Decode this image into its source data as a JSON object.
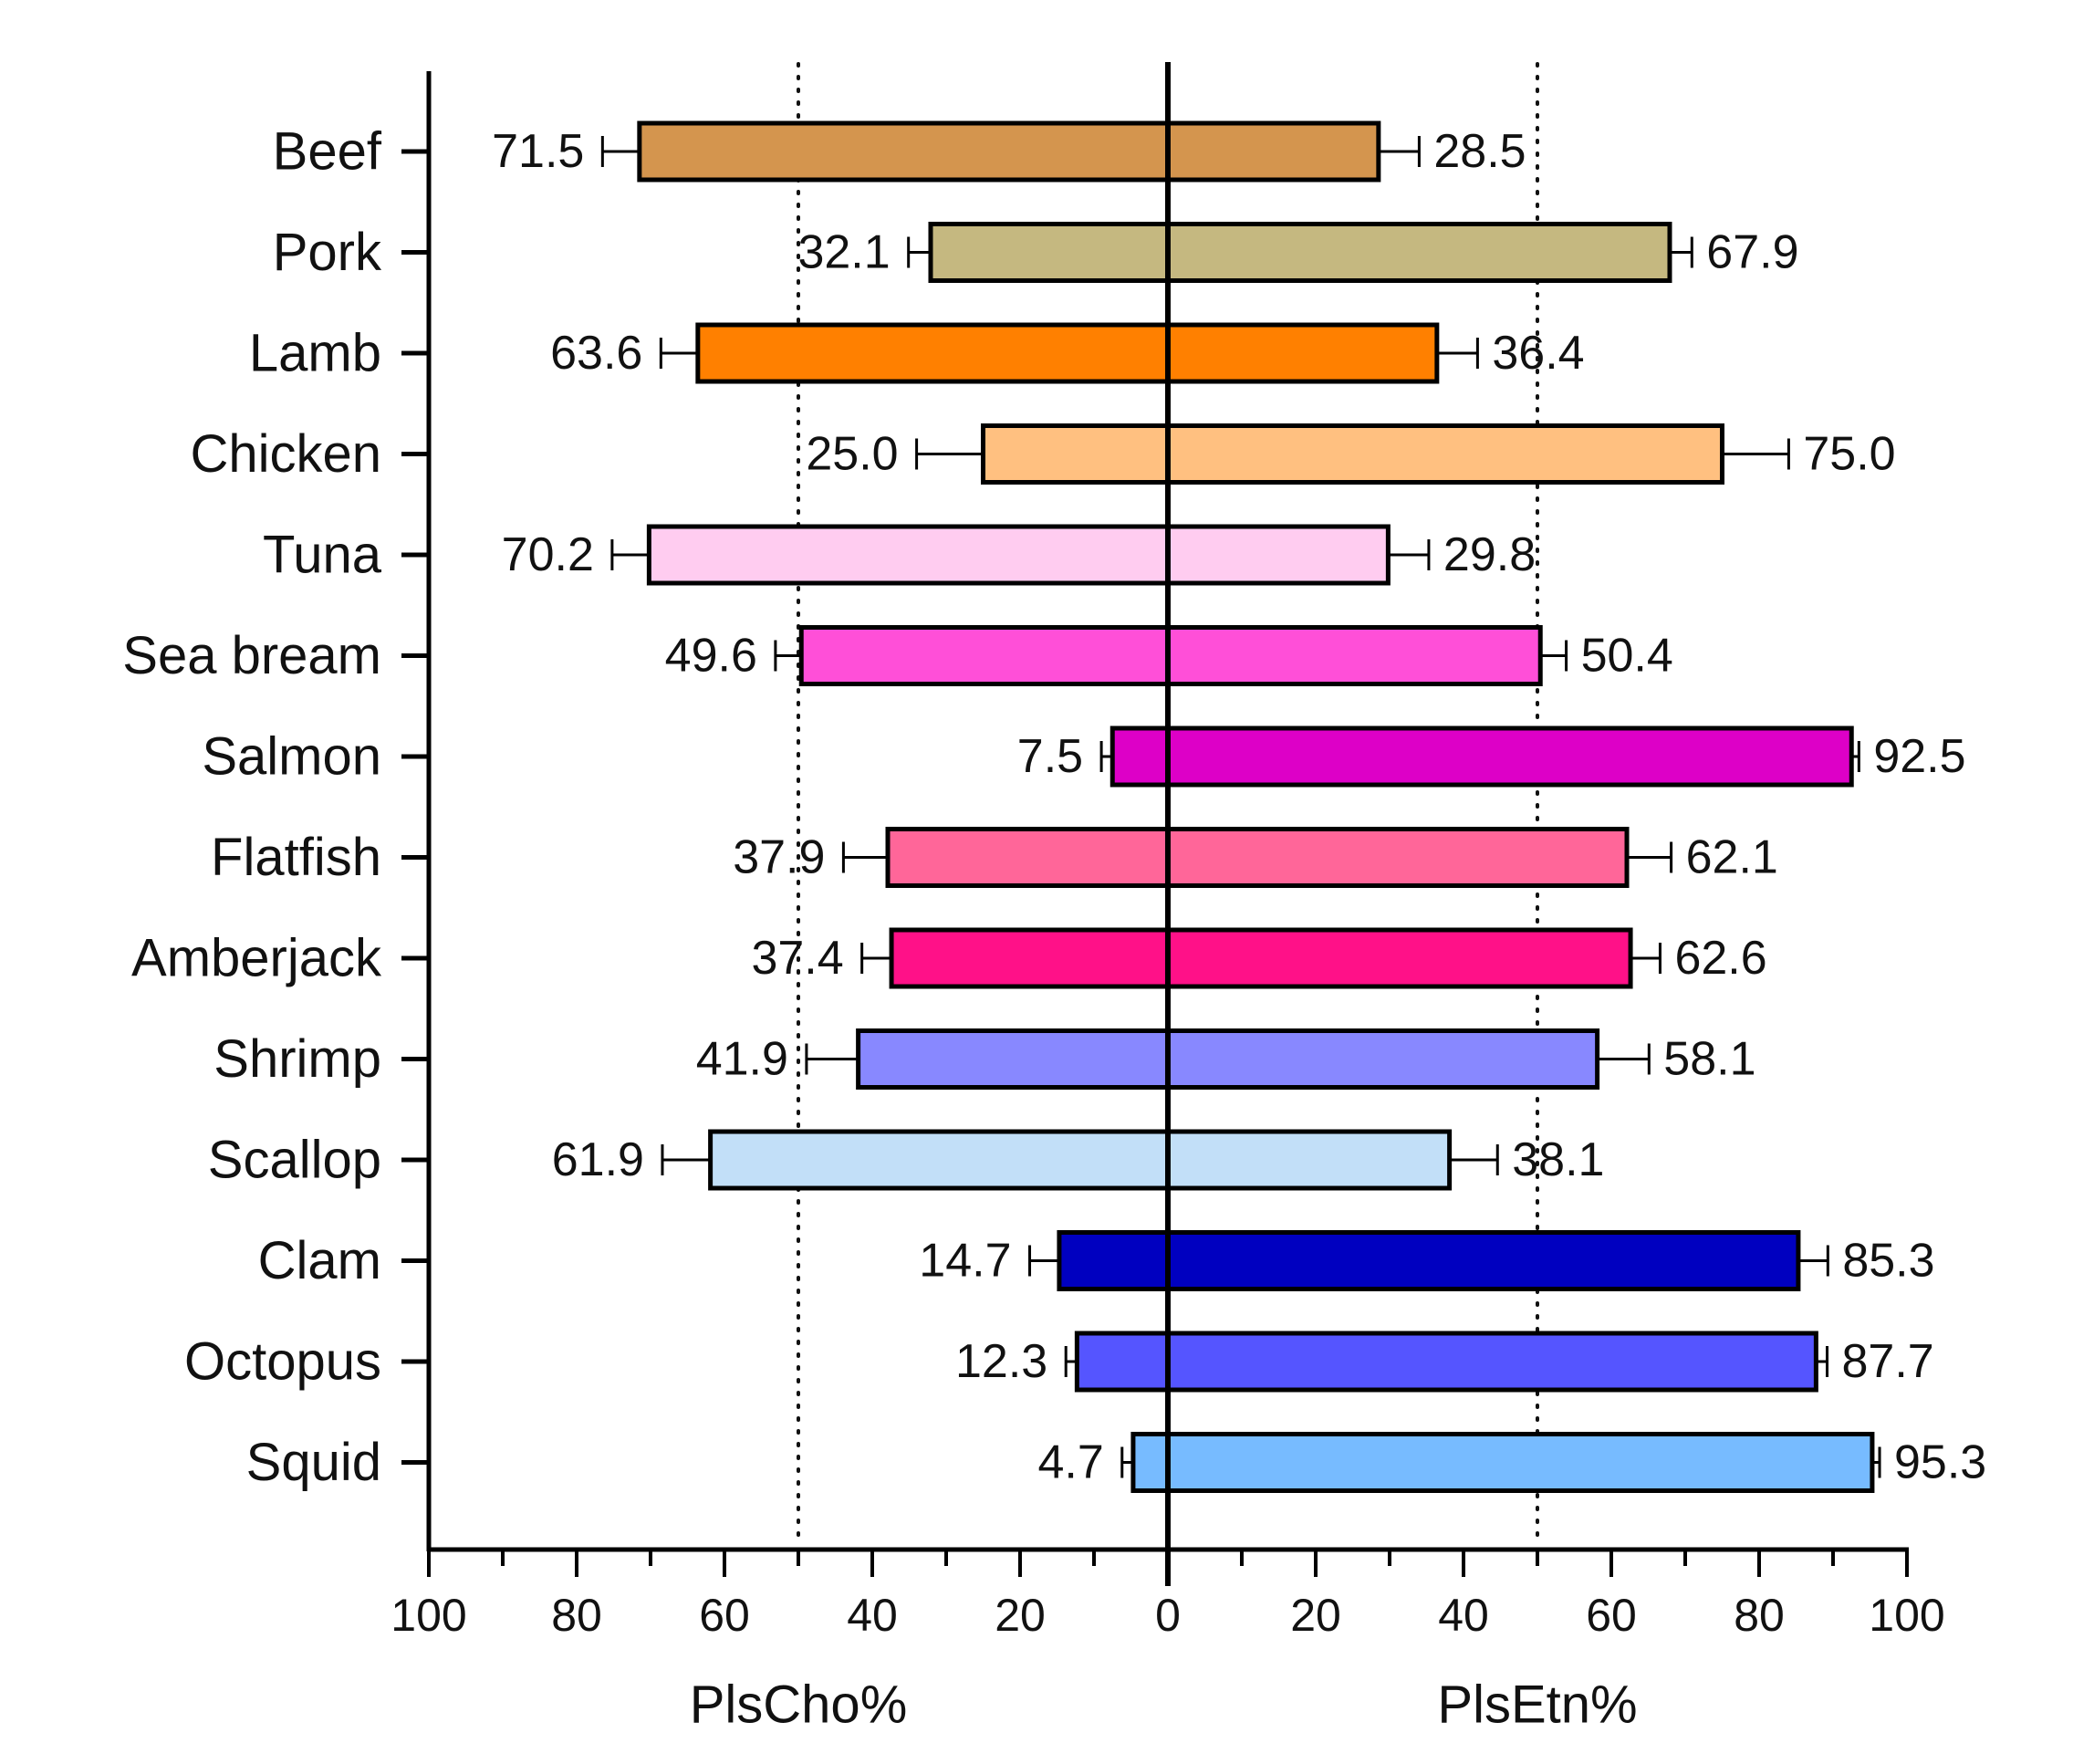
{
  "chart_data": {
    "type": "bar",
    "orientation": "horizontal-diverging",
    "categories": [
      "Beef",
      "Pork",
      "Lamb",
      "Chicken",
      "Tuna",
      "Sea bream",
      "Salmon",
      "Flatfish",
      "Amberjack",
      "Shrimp",
      "Scallop",
      "Clam",
      "Octopus",
      "Squid"
    ],
    "colors": [
      "#D4954E",
      "#C5B880",
      "#FF8000",
      "#FFC080",
      "#FFCCF0",
      "#FF4FD8",
      "#DD00C7",
      "#FF6699",
      "#FF1188",
      "#8888FF",
      "#C2DFF8",
      "#0000C0",
      "#5555FF",
      "#77BBFF"
    ],
    "series": [
      {
        "name": "PlsCho%",
        "side": "left",
        "values": [
          71.5,
          32.1,
          63.6,
          25.0,
          70.2,
          49.6,
          7.5,
          37.9,
          37.4,
          41.9,
          61.9,
          14.7,
          12.3,
          4.7
        ],
        "labels": [
          "71.5",
          "32.1",
          "63.6",
          "25.0",
          "70.2",
          "49.6",
          "7.5",
          "37.9",
          "37.4",
          "41.9",
          "61.9",
          "14.7",
          "12.3",
          "4.7"
        ],
        "errors": [
          5.0,
          3.0,
          5.0,
          9.0,
          5.0,
          3.5,
          1.5,
          6.0,
          4.0,
          7.0,
          6.5,
          4.0,
          1.5,
          1.5
        ]
      },
      {
        "name": "PlsEtn%",
        "side": "right",
        "values": [
          28.5,
          67.9,
          36.4,
          75.0,
          29.8,
          50.4,
          92.5,
          62.1,
          62.6,
          58.1,
          38.1,
          85.3,
          87.7,
          95.3
        ],
        "labels": [
          "28.5",
          "67.9",
          "36.4",
          "75.0",
          "29.8",
          "50.4",
          "92.5",
          "62.1",
          "62.6",
          "58.1",
          "38.1",
          "85.3",
          "87.7",
          "95.3"
        ],
        "errors": [
          5.5,
          3.0,
          5.5,
          9.0,
          5.5,
          3.5,
          1.0,
          6.0,
          4.0,
          7.0,
          6.5,
          4.0,
          1.5,
          1.0
        ]
      }
    ],
    "reference_lines": [
      {
        "side": "left",
        "value": 50,
        "style": "dotted"
      },
      {
        "side": "right",
        "value": 50,
        "style": "dotted"
      }
    ],
    "x_left": {
      "label": "PlsCho%",
      "range": [
        100,
        0
      ],
      "ticks": [
        "100",
        "80",
        "60",
        "40",
        "20"
      ]
    },
    "x_right": {
      "label": "PlsEtn%",
      "range": [
        0,
        100
      ],
      "ticks": [
        "0",
        "20",
        "40",
        "60",
        "80",
        "100"
      ]
    },
    "xlim": [
      -100,
      100
    ],
    "grid": false,
    "legend": "none"
  }
}
